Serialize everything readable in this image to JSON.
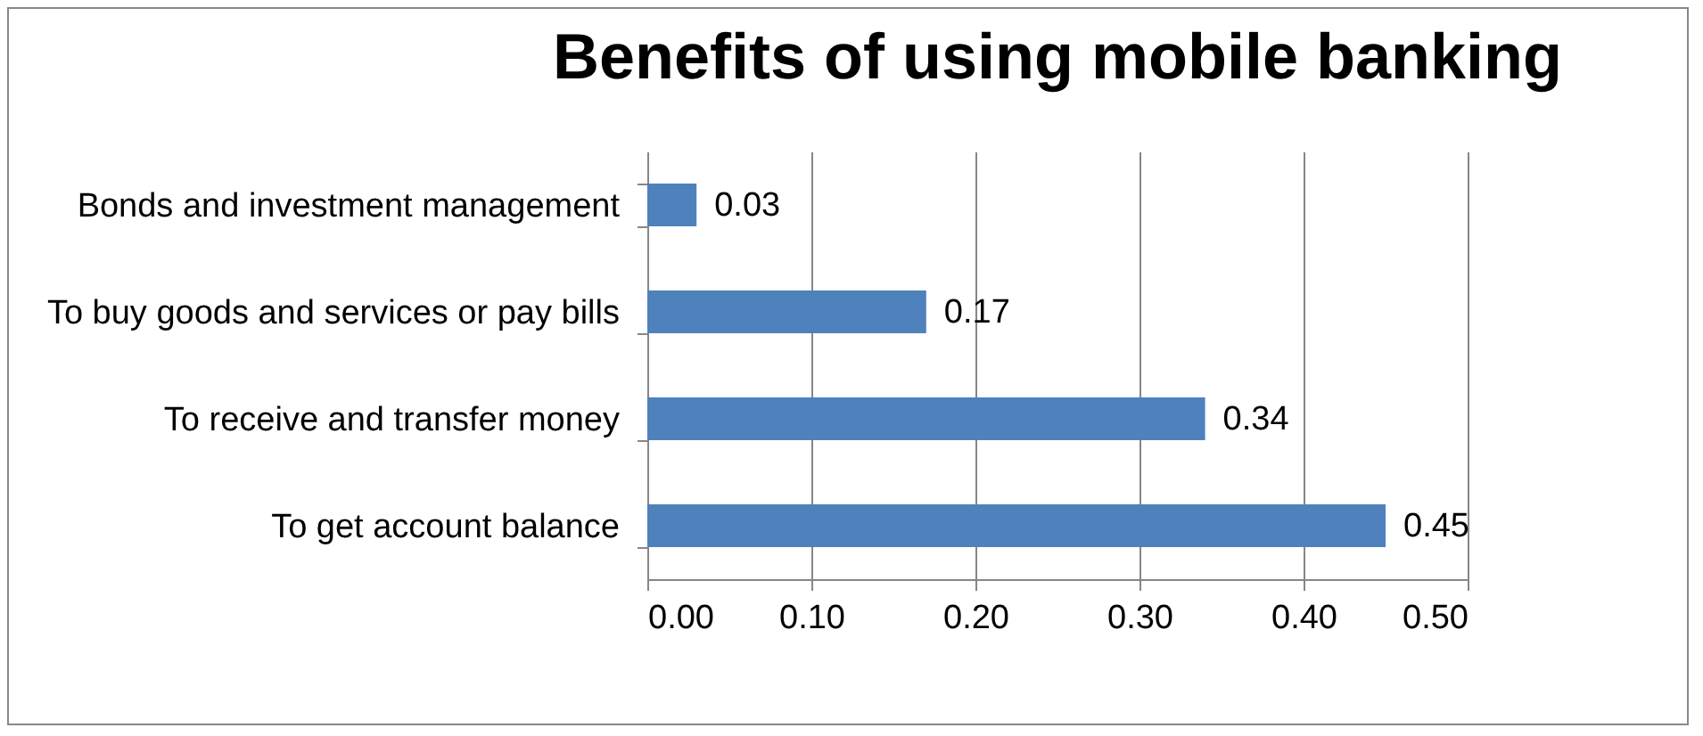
{
  "chart_data": {
    "type": "bar",
    "title": "Benefits of using mobile banking",
    "orientation": "horizontal",
    "categories": [
      "Bonds and investment management",
      "To buy goods and services or pay bills",
      "To receive and transfer money",
      "To get account balance"
    ],
    "values": [
      0.03,
      0.17,
      0.34,
      0.45
    ],
    "color": "#4f81bd",
    "data_labels": true,
    "xlim": [
      0,
      0.5
    ],
    "xticks": [
      {
        "value": 0,
        "label": "0.00"
      },
      {
        "value": 0.1,
        "label": "0.10"
      },
      {
        "value": 0.2,
        "label": "0.20"
      },
      {
        "value": 0.3,
        "label": "0.30"
      },
      {
        "value": 0.4,
        "label": "0.40"
      },
      {
        "value": 0.5,
        "label": "0.50"
      }
    ],
    "grid": "x"
  }
}
